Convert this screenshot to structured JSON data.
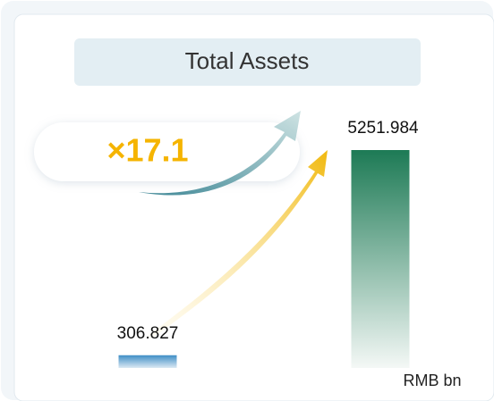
{
  "chart_data": {
    "type": "bar",
    "title": "Total Assets",
    "values": [
      306.827,
      5251.984
    ],
    "colors": [
      "#3f8ec6",
      "#1d7a55"
    ],
    "annotation": "×17.1",
    "unit": "RMB bn"
  }
}
